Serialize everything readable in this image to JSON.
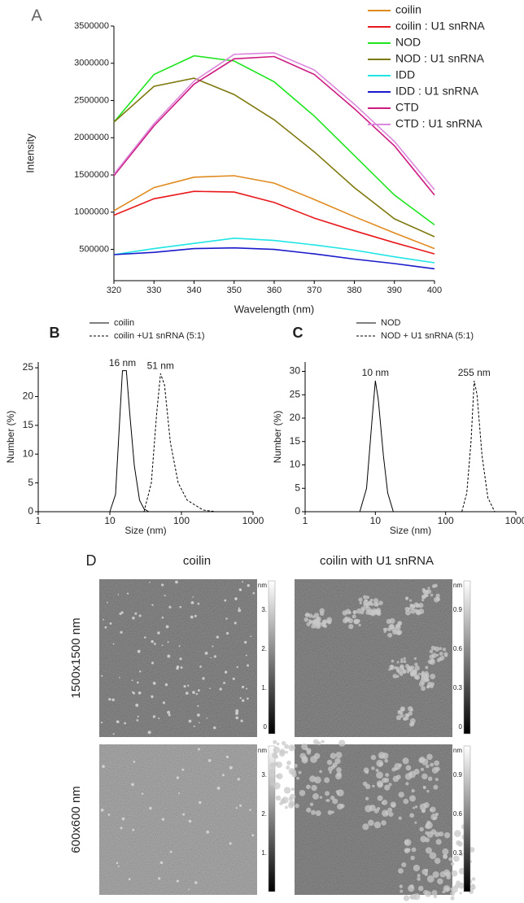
{
  "chart_data": [
    {
      "type": "line",
      "panel_label": "A",
      "x_label": "Wavelength (nm)",
      "y_label": "Intensity",
      "x": [
        320,
        330,
        340,
        350,
        360,
        370,
        380,
        390,
        400
      ],
      "xlim": [
        320,
        400
      ],
      "xticks": [
        320,
        330,
        340,
        350,
        360,
        370,
        380,
        390,
        400
      ],
      "ylim": [
        80000,
        3500000
      ],
      "yticks": [
        500000,
        1000000,
        1500000,
        2000000,
        2500000,
        3000000,
        3500000
      ],
      "legend": "upper right",
      "series": [
        {
          "name": "coilin",
          "color": "#e08a1e",
          "values": [
            1020000,
            1330000,
            1470000,
            1490000,
            1390000,
            1170000,
            940000,
            720000,
            510000
          ]
        },
        {
          "name": "coilin : U1 snRNA",
          "color": "#e8191c",
          "values": [
            960000,
            1180000,
            1280000,
            1270000,
            1130000,
            920000,
            750000,
            590000,
            440000
          ]
        },
        {
          "name": "NOD",
          "color": "#1fe51f",
          "values": [
            2210000,
            2850000,
            3100000,
            3030000,
            2750000,
            2290000,
            1760000,
            1230000,
            830000
          ]
        },
        {
          "name": "NOD : U1 snRNA",
          "color": "#7f7a10",
          "values": [
            2210000,
            2690000,
            2800000,
            2580000,
            2240000,
            1810000,
            1330000,
            910000,
            670000
          ]
        },
        {
          "name": "IDD",
          "color": "#1fe5e5",
          "values": [
            430000,
            510000,
            580000,
            650000,
            620000,
            560000,
            490000,
            400000,
            320000
          ]
        },
        {
          "name": "IDD : U1 snRNA",
          "color": "#1a1acc",
          "values": [
            430000,
            460000,
            510000,
            520000,
            500000,
            440000,
            370000,
            310000,
            240000
          ]
        },
        {
          "name": "CTD",
          "color": "#cc1a80",
          "values": [
            1490000,
            2160000,
            2720000,
            3060000,
            3090000,
            2850000,
            2390000,
            1890000,
            1230000
          ]
        },
        {
          "name": "CTD : U1 snRNA",
          "color": "#dd88dd",
          "values": [
            1510000,
            2190000,
            2760000,
            3120000,
            3140000,
            2910000,
            2450000,
            1950000,
            1300000
          ]
        }
      ]
    },
    {
      "type": "line",
      "panel_label": "B",
      "x_label": "Size (nm)",
      "y_label": "Number (%)",
      "x_scale": "log",
      "xlim": [
        1,
        1000
      ],
      "xticks": [
        1,
        10,
        100,
        1000
      ],
      "ylim": [
        0,
        26
      ],
      "yticks": [
        0,
        5,
        10,
        15,
        20,
        25
      ],
      "legend": "top",
      "annotations": [
        "16 nm",
        "51 nm"
      ],
      "series": [
        {
          "name": "coilin",
          "color": "#000000",
          "dash": "solid",
          "x": [
            10,
            12,
            14,
            15,
            17,
            19,
            22,
            26,
            30,
            35
          ],
          "values": [
            0,
            3,
            18,
            24.5,
            24.5,
            17,
            8,
            2,
            0.5,
            0
          ]
        },
        {
          "name": "coilin +U1 snRNA (5:1)",
          "color": "#000000",
          "dash": "dashed",
          "x": [
            30,
            38,
            45,
            51,
            58,
            70,
            90,
            120,
            200,
            300
          ],
          "values": [
            0,
            5,
            17,
            24,
            22,
            12,
            5,
            2,
            0.3,
            0
          ]
        }
      ]
    },
    {
      "type": "line",
      "panel_label": "C",
      "x_label": "Size (nm)",
      "y_label": "Number (%)",
      "x_scale": "log",
      "xlim": [
        1,
        1000
      ],
      "xticks": [
        1,
        10,
        100,
        1000
      ],
      "ylim": [
        0,
        32
      ],
      "yticks": [
        0,
        5,
        10,
        15,
        20,
        25,
        30
      ],
      "legend": "top",
      "annotations": [
        "10 nm",
        "255 nm"
      ],
      "series": [
        {
          "name": "NOD",
          "color": "#000000",
          "dash": "solid",
          "x": [
            6,
            7.5,
            9,
            10,
            11,
            13,
            15,
            18
          ],
          "values": [
            0,
            5,
            20,
            28,
            24,
            12,
            4,
            0
          ]
        },
        {
          "name": "NOD + U1 snRNA (5:1)",
          "color": "#000000",
          "dash": "dashed",
          "x": [
            170,
            200,
            230,
            255,
            280,
            330,
            400,
            500
          ],
          "values": [
            0,
            4,
            15,
            28,
            25,
            12,
            3,
            0
          ]
        }
      ]
    }
  ],
  "afm": {
    "label": "D",
    "columns": [
      "coilin",
      "coilin with U1 snRNA"
    ],
    "rows": [
      "1500x1500 nm",
      "600x600 nm"
    ],
    "images": [
      {
        "unit": "nm",
        "scale": [
          "3.",
          "2.",
          "1.",
          "0"
        ]
      },
      {
        "unit": "nm",
        "scale": [
          "0.9",
          "0.6",
          "0.3",
          "0"
        ]
      },
      {
        "unit": "nm",
        "scale": [
          "3.",
          "2.",
          "1."
        ]
      },
      {
        "unit": "nm",
        "scale": [
          "0.9",
          "0.6",
          "0.3"
        ]
      }
    ]
  }
}
